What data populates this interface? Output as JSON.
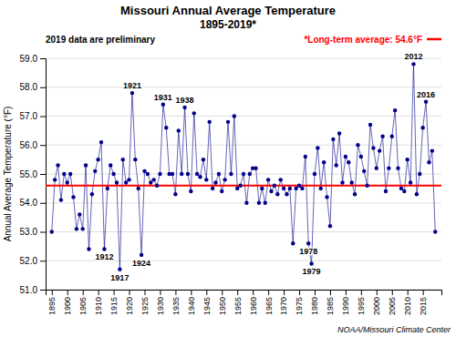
{
  "chart_data": {
    "type": "line",
    "title": "Missouri Annual Average Temperature",
    "subtitle": "1895-2019*",
    "y_label": "Annual Average Temperature (°F)",
    "note": "2019 data are preliminary",
    "credit": "NOAA/Missouri Climate Center",
    "x": [
      1895,
      1896,
      1897,
      1898,
      1899,
      1900,
      1901,
      1902,
      1903,
      1904,
      1905,
      1906,
      1907,
      1908,
      1909,
      1910,
      1911,
      1912,
      1913,
      1914,
      1915,
      1916,
      1917,
      1918,
      1919,
      1920,
      1921,
      1922,
      1923,
      1924,
      1925,
      1926,
      1927,
      1928,
      1929,
      1930,
      1931,
      1932,
      1933,
      1934,
      1935,
      1936,
      1937,
      1938,
      1939,
      1940,
      1941,
      1942,
      1943,
      1944,
      1945,
      1946,
      1947,
      1948,
      1949,
      1950,
      1951,
      1952,
      1953,
      1954,
      1955,
      1956,
      1957,
      1958,
      1959,
      1960,
      1961,
      1962,
      1963,
      1964,
      1965,
      1966,
      1967,
      1968,
      1969,
      1970,
      1971,
      1972,
      1973,
      1974,
      1975,
      1976,
      1977,
      1978,
      1979,
      1980,
      1981,
      1982,
      1983,
      1984,
      1985,
      1986,
      1987,
      1988,
      1989,
      1990,
      1991,
      1992,
      1993,
      1994,
      1995,
      1996,
      1997,
      1998,
      1999,
      2000,
      2001,
      2002,
      2003,
      2004,
      2005,
      2006,
      2007,
      2008,
      2009,
      2010,
      2011,
      2012,
      2013,
      2014,
      2015,
      2016,
      2017,
      2018,
      2019
    ],
    "series": [
      {
        "color": "#00008b",
        "marker": "circle",
        "values": [
          53.0,
          54.8,
          55.3,
          54.1,
          55.0,
          54.7,
          55.0,
          54.2,
          53.1,
          53.6,
          53.1,
          55.3,
          52.4,
          54.3,
          55.1,
          55.5,
          56.1,
          52.4,
          54.5,
          55.3,
          55.0,
          54.7,
          51.7,
          55.5,
          54.7,
          54.8,
          57.8,
          55.5,
          54.5,
          52.2,
          55.1,
          55.0,
          54.7,
          54.8,
          54.6,
          55.0,
          57.4,
          56.6,
          55.0,
          55.0,
          54.3,
          56.5,
          55.0,
          57.3,
          55.0,
          54.4,
          57.1,
          55.0,
          54.9,
          55.5,
          54.8,
          56.8,
          54.5,
          54.7,
          55.0,
          54.4,
          54.8,
          56.8,
          55.0,
          57.0,
          54.5,
          54.6,
          55.0,
          54.0,
          55.0,
          55.2,
          55.2,
          54.0,
          54.5,
          54.0,
          54.8,
          54.4,
          54.6,
          54.3,
          54.8,
          54.5,
          54.3,
          54.5,
          52.6,
          54.5,
          54.6,
          54.5,
          55.6,
          52.6,
          51.9,
          55.0,
          55.9,
          54.5,
          55.4,
          54.2,
          53.2,
          56.2,
          55.3,
          56.4,
          54.7,
          55.6,
          55.4,
          54.7,
          54.3,
          56.0,
          55.6,
          55.1,
          54.6,
          56.7,
          55.9,
          55.2,
          55.8,
          56.3,
          54.4,
          55.2,
          56.3,
          57.2,
          55.2,
          54.5,
          54.4,
          55.5,
          54.7,
          58.8,
          54.3,
          55.0,
          56.6,
          57.5,
          55.4,
          55.8,
          53.0
        ]
      }
    ],
    "reference_line": {
      "value": 54.6,
      "label": "*Long-term average: 54.6°F",
      "color": "#ff0000"
    },
    "annotations": [
      {
        "text": "1912",
        "x": 1912
      },
      {
        "text": "1917",
        "x": 1917
      },
      {
        "text": "1921",
        "x": 1921
      },
      {
        "text": "1924",
        "x": 1924
      },
      {
        "text": "1931",
        "x": 1931
      },
      {
        "text": "1938",
        "x": 1938
      },
      {
        "text": "1978",
        "x": 1978
      },
      {
        "text": "1979",
        "x": 1979
      },
      {
        "text": "2012",
        "x": 2012
      },
      {
        "text": "2016",
        "x": 2016
      }
    ],
    "xlim": [
      1893,
      2021
    ],
    "xticks": [
      1895,
      1900,
      1905,
      1910,
      1915,
      1920,
      1925,
      1930,
      1935,
      1940,
      1945,
      1950,
      1955,
      1960,
      1965,
      1970,
      1975,
      1980,
      1985,
      1990,
      1995,
      2000,
      2005,
      2010,
      2015
    ],
    "ylim": [
      51.0,
      59.0
    ],
    "yticks": [
      {
        "value": 51.0,
        "label": "51.0"
      },
      {
        "value": 52.0,
        "label": "52.0"
      },
      {
        "value": 53.0,
        "label": "53.0"
      },
      {
        "value": 54.0,
        "label": "54.0"
      },
      {
        "value": 55.0,
        "label": "55.0"
      },
      {
        "value": 56.0,
        "label": "56.0"
      },
      {
        "value": 57.0,
        "label": "57.0"
      },
      {
        "value": 58.0,
        "label": "58.0"
      },
      {
        "value": 59.0,
        "label": "59.0"
      }
    ],
    "grid": "y"
  }
}
